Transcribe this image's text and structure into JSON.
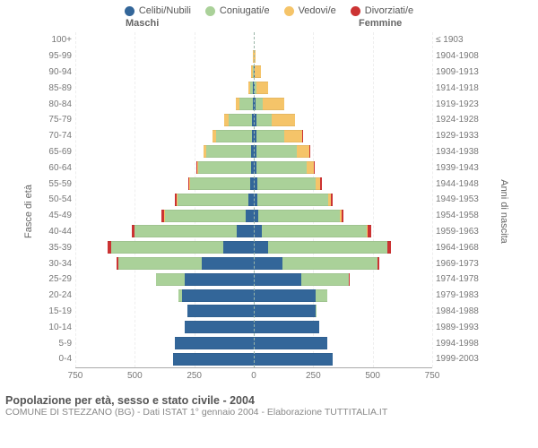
{
  "colors": {
    "celibi": "#336699",
    "coniugati": "#aad199",
    "vedovi": "#f5c469",
    "divorziati": "#cc3333"
  },
  "legend": [
    {
      "label": "Celibi/Nubili",
      "colorKey": "celibi"
    },
    {
      "label": "Coniugati/e",
      "colorKey": "coniugati"
    },
    {
      "label": "Vedovi/e",
      "colorKey": "vedovi"
    },
    {
      "label": "Divorziati/e",
      "colorKey": "divorziati"
    }
  ],
  "header_male": "Maschi",
  "header_female": "Femmine",
  "ylabel_left": "Fasce di età",
  "ylabel_right": "Anni di nascita",
  "xmax": 750,
  "xticks_left": [
    750,
    500,
    250,
    0
  ],
  "xticks_right": [
    250,
    500,
    750
  ],
  "title": "Popolazione per età, sesso e stato civile - 2004",
  "subtitle": "COMUNE DI STEZZANO (BG) - Dati ISTAT 1° gennaio 2004 - Elaborazione TUTTITALIA.IT",
  "segment_order": [
    "celibi",
    "coniugati",
    "vedovi",
    "divorziati"
  ],
  "rows": [
    {
      "age": "100+",
      "birth": "≤ 1903",
      "m": {
        "celibi": 0,
        "coniugati": 0,
        "vedovi": 0,
        "divorziati": 0
      },
      "f": {
        "celibi": 0,
        "coniugati": 0,
        "vedovi": 0,
        "divorziati": 0
      }
    },
    {
      "age": "95-99",
      "birth": "1904-1908",
      "m": {
        "celibi": 0,
        "coniugati": 0,
        "vedovi": 2,
        "divorziati": 0
      },
      "f": {
        "celibi": 1,
        "coniugati": 0,
        "vedovi": 5,
        "divorziati": 0
      }
    },
    {
      "age": "90-94",
      "birth": "1909-1913",
      "m": {
        "celibi": 1,
        "coniugati": 4,
        "vedovi": 6,
        "divorziati": 0
      },
      "f": {
        "celibi": 2,
        "coniugati": 2,
        "vedovi": 25,
        "divorziati": 0
      }
    },
    {
      "age": "85-89",
      "birth": "1914-1918",
      "m": {
        "celibi": 2,
        "coniugati": 14,
        "vedovi": 8,
        "divorziati": 0
      },
      "f": {
        "celibi": 4,
        "coniugati": 8,
        "vedovi": 48,
        "divorziati": 0
      }
    },
    {
      "age": "80-84",
      "birth": "1919-1923",
      "m": {
        "celibi": 4,
        "coniugati": 55,
        "vedovi": 16,
        "divorziati": 0
      },
      "f": {
        "celibi": 8,
        "coniugati": 30,
        "vedovi": 90,
        "divorziati": 0
      }
    },
    {
      "age": "75-79",
      "birth": "1924-1928",
      "m": {
        "celibi": 6,
        "coniugati": 100,
        "vedovi": 18,
        "divorziati": 0
      },
      "f": {
        "celibi": 10,
        "coniugati": 65,
        "vedovi": 100,
        "divorziati": 0
      }
    },
    {
      "age": "70-74",
      "birth": "1929-1933",
      "m": {
        "celibi": 8,
        "coniugati": 150,
        "vedovi": 14,
        "divorziati": 2
      },
      "f": {
        "celibi": 10,
        "coniugati": 120,
        "vedovi": 75,
        "divorziati": 2
      }
    },
    {
      "age": "65-69",
      "birth": "1934-1938",
      "m": {
        "celibi": 10,
        "coniugati": 190,
        "vedovi": 10,
        "divorziati": 3
      },
      "f": {
        "celibi": 12,
        "coniugati": 170,
        "vedovi": 50,
        "divorziati": 3
      }
    },
    {
      "age": "60-64",
      "birth": "1939-1943",
      "m": {
        "celibi": 12,
        "coniugati": 220,
        "vedovi": 6,
        "divorziati": 4
      },
      "f": {
        "celibi": 12,
        "coniugati": 210,
        "vedovi": 32,
        "divorziati": 4
      }
    },
    {
      "age": "55-59",
      "birth": "1944-1948",
      "m": {
        "celibi": 16,
        "coniugati": 250,
        "vedovi": 4,
        "divorziati": 6
      },
      "f": {
        "celibi": 14,
        "coniugati": 245,
        "vedovi": 20,
        "divorziati": 6
      }
    },
    {
      "age": "50-54",
      "birth": "1949-1953",
      "m": {
        "celibi": 22,
        "coniugati": 300,
        "vedovi": 3,
        "divorziati": 8
      },
      "f": {
        "celibi": 16,
        "coniugati": 295,
        "vedovi": 12,
        "divorziati": 8
      }
    },
    {
      "age": "45-49",
      "birth": "1954-1958",
      "m": {
        "celibi": 35,
        "coniugati": 340,
        "vedovi": 2,
        "divorziati": 10
      },
      "f": {
        "celibi": 20,
        "coniugati": 340,
        "vedovi": 8,
        "divorziati": 10
      }
    },
    {
      "age": "40-44",
      "birth": "1959-1963",
      "m": {
        "celibi": 70,
        "coniugati": 430,
        "vedovi": 2,
        "divorziati": 12
      },
      "f": {
        "celibi": 35,
        "coniugati": 440,
        "vedovi": 5,
        "divorziati": 12
      }
    },
    {
      "age": "35-39",
      "birth": "1964-1968",
      "m": {
        "celibi": 130,
        "coniugati": 470,
        "vedovi": 1,
        "divorziati": 14
      },
      "f": {
        "celibi": 60,
        "coniugati": 500,
        "vedovi": 3,
        "divorziati": 14
      }
    },
    {
      "age": "30-34",
      "birth": "1969-1973",
      "m": {
        "celibi": 220,
        "coniugati": 350,
        "vedovi": 0,
        "divorziati": 8
      },
      "f": {
        "celibi": 120,
        "coniugati": 400,
        "vedovi": 1,
        "divorziati": 8
      }
    },
    {
      "age": "25-29",
      "birth": "1974-1978",
      "m": {
        "celibi": 290,
        "coniugati": 120,
        "vedovi": 0,
        "divorziati": 2
      },
      "f": {
        "celibi": 200,
        "coniugati": 200,
        "vedovi": 0,
        "divorziati": 3
      }
    },
    {
      "age": "20-24",
      "birth": "1979-1983",
      "m": {
        "celibi": 300,
        "coniugati": 18,
        "vedovi": 0,
        "divorziati": 0
      },
      "f": {
        "celibi": 260,
        "coniugati": 50,
        "vedovi": 0,
        "divorziati": 0
      }
    },
    {
      "age": "15-19",
      "birth": "1984-1988",
      "m": {
        "celibi": 280,
        "coniugati": 0,
        "vedovi": 0,
        "divorziati": 0
      },
      "f": {
        "celibi": 260,
        "coniugati": 2,
        "vedovi": 0,
        "divorziati": 0
      }
    },
    {
      "age": "10-14",
      "birth": "1989-1993",
      "m": {
        "celibi": 290,
        "coniugati": 0,
        "vedovi": 0,
        "divorziati": 0
      },
      "f": {
        "celibi": 275,
        "coniugati": 0,
        "vedovi": 0,
        "divorziati": 0
      }
    },
    {
      "age": "5-9",
      "birth": "1994-1998",
      "m": {
        "celibi": 330,
        "coniugati": 0,
        "vedovi": 0,
        "divorziati": 0
      },
      "f": {
        "celibi": 310,
        "coniugati": 0,
        "vedovi": 0,
        "divorziati": 0
      }
    },
    {
      "age": "0-4",
      "birth": "1999-2003",
      "m": {
        "celibi": 340,
        "coniugati": 0,
        "vedovi": 0,
        "divorziati": 0
      },
      "f": {
        "celibi": 330,
        "coniugati": 0,
        "vedovi": 0,
        "divorziati": 0
      }
    }
  ]
}
